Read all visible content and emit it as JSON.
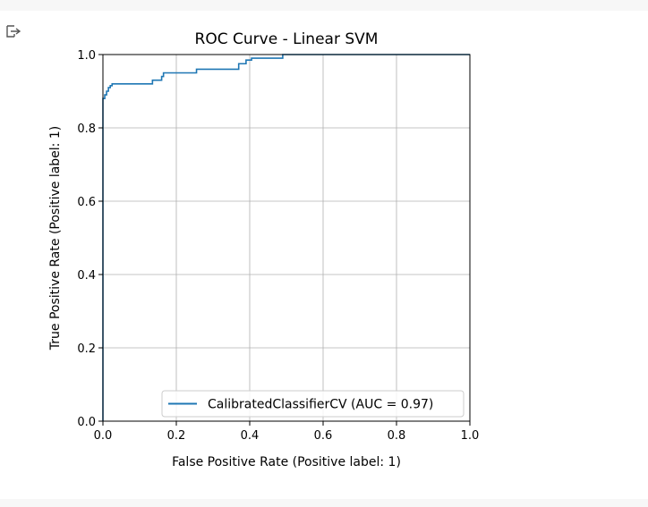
{
  "notebook": {
    "output_toggle_icon": "output-collapse-icon"
  },
  "chart_data": {
    "type": "line",
    "title": "ROC Curve - Linear SVM",
    "xlabel": "False Positive Rate (Positive label: 1)",
    "ylabel": "True Positive Rate (Positive label: 1)",
    "xlim": [
      0.0,
      1.0
    ],
    "ylim": [
      0.0,
      1.0
    ],
    "xticks": [
      "0.0",
      "0.2",
      "0.4",
      "0.6",
      "0.8",
      "1.0"
    ],
    "yticks": [
      "0.0",
      "0.2",
      "0.4",
      "0.6",
      "0.8",
      "1.0"
    ],
    "grid": true,
    "legend_position": "lower-right",
    "series": [
      {
        "name": "CalibratedClassifierCV (AUC = 0.97)",
        "color": "#1f77b4",
        "x": [
          0.0,
          0.0,
          0.005,
          0.005,
          0.01,
          0.01,
          0.015,
          0.015,
          0.02,
          0.02,
          0.025,
          0.025,
          0.135,
          0.135,
          0.16,
          0.16,
          0.165,
          0.165,
          0.255,
          0.255,
          0.37,
          0.37,
          0.39,
          0.39,
          0.405,
          0.405,
          0.49,
          0.49,
          1.0
        ],
        "y": [
          0.0,
          0.88,
          0.88,
          0.89,
          0.89,
          0.9,
          0.9,
          0.91,
          0.91,
          0.915,
          0.915,
          0.92,
          0.92,
          0.93,
          0.93,
          0.94,
          0.94,
          0.95,
          0.95,
          0.96,
          0.96,
          0.975,
          0.975,
          0.985,
          0.985,
          0.99,
          0.99,
          1.0,
          1.0
        ]
      }
    ]
  }
}
